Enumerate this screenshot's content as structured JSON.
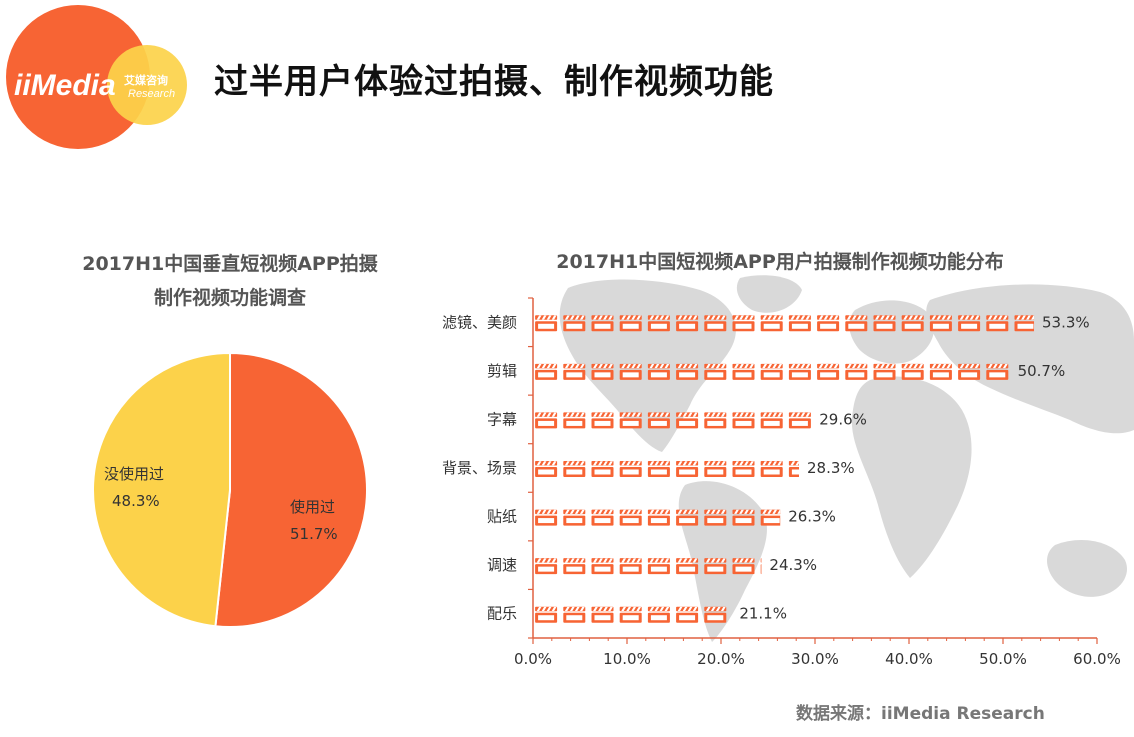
{
  "header": {
    "logo_text": "iiMedia",
    "logo_sub_cn": "艾媒咨询",
    "logo_sub_en": "Research",
    "title": "过半用户体验过拍摄、制作视频功能"
  },
  "colors": {
    "orange": "#f76434",
    "yellow": "#fcd24a",
    "map_gray": "#d8d8d8",
    "axis": "#e06040"
  },
  "chart_data": [
    {
      "type": "pie",
      "title_line1": "2017H1中国垂直短视频APP拍摄",
      "title_line2": "制作视频功能调查",
      "slices": [
        {
          "label": "使用过",
          "value": 51.7,
          "value_text": "51.7%",
          "color": "#f76434"
        },
        {
          "label": "没使用过",
          "value": 48.3,
          "value_text": "48.3%",
          "color": "#fcd24a"
        }
      ]
    },
    {
      "type": "bar",
      "orientation": "horizontal",
      "title": "2017H1中国短视频APP用户拍摄制作视频功能分布",
      "categories": [
        "滤镜、美颜",
        "剪辑",
        "字幕",
        "背景、场景",
        "贴纸",
        "调速",
        "配乐"
      ],
      "values": [
        53.3,
        50.7,
        29.6,
        28.3,
        26.3,
        24.3,
        21.1
      ],
      "value_labels": [
        "53.3%",
        "50.7%",
        "29.6%",
        "28.3%",
        "26.3%",
        "24.3%",
        "21.1%"
      ],
      "xlim": [
        0,
        60
      ],
      "x_ticks": [
        "0.0%",
        "10.0%",
        "20.0%",
        "30.0%",
        "40.0%",
        "50.0%",
        "60.0%"
      ],
      "bar_icon": "clapperboard-icon",
      "background": "world-map"
    }
  ],
  "source": "数据来源：iiMedia Research"
}
